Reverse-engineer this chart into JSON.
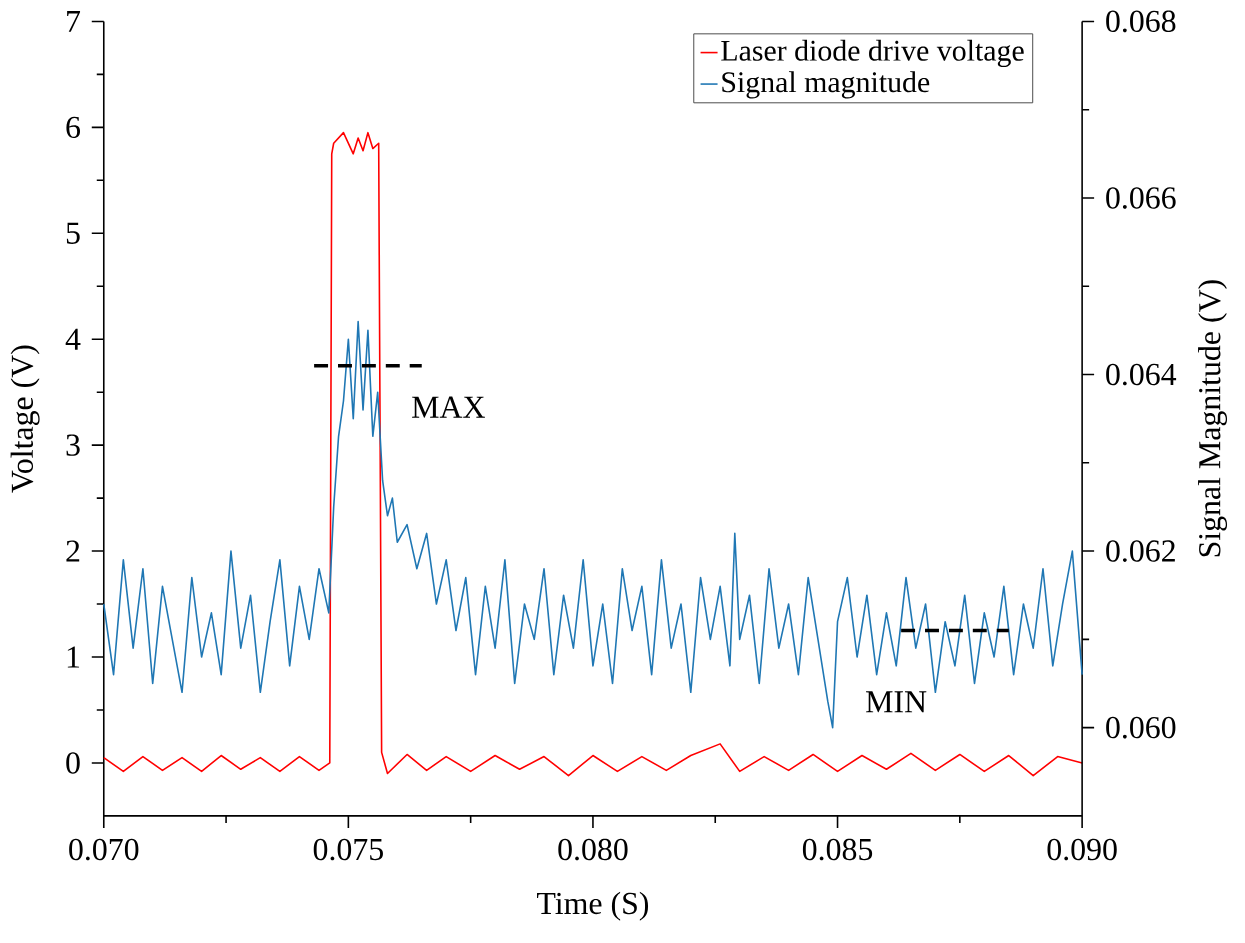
{
  "chart_data": {
    "type": "line",
    "xlabel": "Time (S)",
    "ylabel": "Voltage (V)",
    "y2label": "Signal Magnitude (V)",
    "xlim": [
      0.07,
      0.09
    ],
    "xticks": [
      {
        "value": 0.07,
        "label": "0.070"
      },
      {
        "value": 0.075,
        "label": "0.075"
      },
      {
        "value": 0.08,
        "label": "0.080"
      },
      {
        "value": 0.085,
        "label": "0.085"
      },
      {
        "value": 0.09,
        "label": "0.090"
      }
    ],
    "ylim": [
      -0.5,
      7
    ],
    "yticks": [
      0,
      1,
      2,
      3,
      4,
      5,
      6,
      7
    ],
    "y2lim": [
      0.059,
      0.068
    ],
    "y2ticks": [
      {
        "value": 0.06,
        "label": "0.060"
      },
      {
        "value": 0.062,
        "label": "0.062"
      },
      {
        "value": 0.064,
        "label": "0.064"
      },
      {
        "value": 0.066,
        "label": "0.066"
      },
      {
        "value": 0.068,
        "label": "0.068"
      }
    ],
    "legend": "top right",
    "series": [
      {
        "name": "Laser diode drive voltage",
        "color": "#ff0000",
        "axis": "y",
        "x": [
          0.07,
          0.0704,
          0.0708,
          0.0712,
          0.0716,
          0.072,
          0.0724,
          0.0728,
          0.0732,
          0.0736,
          0.074,
          0.0744,
          0.07462,
          0.07466,
          0.0747,
          0.0749,
          0.0751,
          0.0752,
          0.0753,
          0.0754,
          0.0755,
          0.07562,
          0.07568,
          0.0758,
          0.0762,
          0.0766,
          0.077,
          0.0775,
          0.078,
          0.0785,
          0.079,
          0.0795,
          0.08,
          0.0805,
          0.081,
          0.0815,
          0.082,
          0.0826,
          0.083,
          0.0835,
          0.084,
          0.0845,
          0.085,
          0.0855,
          0.086,
          0.0865,
          0.087,
          0.0875,
          0.088,
          0.0885,
          0.089,
          0.0895,
          0.09
        ],
        "values": [
          0.05,
          -0.08,
          0.06,
          -0.07,
          0.05,
          -0.08,
          0.07,
          -0.06,
          0.05,
          -0.08,
          0.06,
          -0.07,
          0.0,
          5.75,
          5.85,
          5.95,
          5.75,
          5.9,
          5.78,
          5.95,
          5.8,
          5.85,
          0.1,
          -0.1,
          0.08,
          -0.07,
          0.06,
          -0.08,
          0.07,
          -0.06,
          0.06,
          -0.12,
          0.07,
          -0.08,
          0.06,
          -0.07,
          0.07,
          0.18,
          -0.08,
          0.06,
          -0.07,
          0.08,
          -0.08,
          0.07,
          -0.06,
          0.09,
          -0.07,
          0.08,
          -0.08,
          0.07,
          -0.12,
          0.06,
          0.0
        ]
      },
      {
        "name": "Signal magnitude",
        "color": "#1f77b4",
        "axis": "y2",
        "x": [
          0.07,
          0.0702,
          0.0704,
          0.0706,
          0.0708,
          0.071,
          0.0712,
          0.0714,
          0.0716,
          0.0718,
          0.072,
          0.0722,
          0.0724,
          0.0726,
          0.0728,
          0.073,
          0.0732,
          0.0734,
          0.0736,
          0.0738,
          0.074,
          0.0742,
          0.0744,
          0.0746,
          0.0747,
          0.0748,
          0.0749,
          0.075,
          0.0751,
          0.0752,
          0.0753,
          0.0754,
          0.0755,
          0.0756,
          0.0757,
          0.0758,
          0.0759,
          0.076,
          0.0762,
          0.0764,
          0.0766,
          0.0768,
          0.077,
          0.0772,
          0.0774,
          0.0776,
          0.0778,
          0.078,
          0.0782,
          0.0784,
          0.0786,
          0.0788,
          0.079,
          0.0792,
          0.0794,
          0.0796,
          0.0798,
          0.08,
          0.0802,
          0.0804,
          0.0806,
          0.0808,
          0.081,
          0.0812,
          0.0814,
          0.0816,
          0.0818,
          0.082,
          0.0822,
          0.0824,
          0.0826,
          0.0828,
          0.0829,
          0.083,
          0.0832,
          0.0834,
          0.0836,
          0.0838,
          0.084,
          0.0842,
          0.0844,
          0.0846,
          0.0848,
          0.0849,
          0.085,
          0.0852,
          0.0854,
          0.0856,
          0.0858,
          0.086,
          0.0862,
          0.0864,
          0.0866,
          0.0868,
          0.087,
          0.0872,
          0.0874,
          0.0876,
          0.0878,
          0.088,
          0.0882,
          0.0884,
          0.0886,
          0.0888,
          0.089,
          0.0892,
          0.0894,
          0.0896,
          0.0898,
          0.09
        ],
        "values": [
          0.0614,
          0.0606,
          0.0619,
          0.0609,
          0.0618,
          0.0605,
          0.0616,
          0.061,
          0.0604,
          0.0617,
          0.0608,
          0.0613,
          0.0606,
          0.062,
          0.0609,
          0.0615,
          0.0604,
          0.0612,
          0.0619,
          0.0607,
          0.0616,
          0.061,
          0.0618,
          0.0613,
          0.0625,
          0.0633,
          0.0637,
          0.0644,
          0.0635,
          0.0646,
          0.0636,
          0.0645,
          0.0633,
          0.0638,
          0.0628,
          0.0624,
          0.0626,
          0.0621,
          0.0623,
          0.0618,
          0.0622,
          0.0614,
          0.0619,
          0.0611,
          0.0617,
          0.0606,
          0.0616,
          0.0609,
          0.0619,
          0.0605,
          0.0614,
          0.061,
          0.0618,
          0.0606,
          0.0615,
          0.0609,
          0.0619,
          0.0607,
          0.0614,
          0.0605,
          0.0618,
          0.0611,
          0.0616,
          0.0606,
          0.0619,
          0.0609,
          0.0614,
          0.0604,
          0.0617,
          0.061,
          0.0616,
          0.0607,
          0.0622,
          0.061,
          0.0615,
          0.0605,
          0.0618,
          0.0609,
          0.0614,
          0.0606,
          0.0617,
          0.061,
          0.0603,
          0.06,
          0.0612,
          0.0617,
          0.0608,
          0.0615,
          0.0606,
          0.0613,
          0.0607,
          0.0617,
          0.0609,
          0.0614,
          0.0604,
          0.0612,
          0.0607,
          0.0615,
          0.0605,
          0.0613,
          0.0608,
          0.0616,
          0.0606,
          0.0614,
          0.0609,
          0.0618,
          0.0607,
          0.0614,
          0.062,
          0.0606
        ]
      },
      {
        "color": "#000000",
        "axis": "y2",
        "line_style": "dashed",
        "x": [
          0.0743,
          0.0765
        ],
        "values": [
          0.0641,
          0.0641
        ]
      },
      {
        "color": "#000000",
        "axis": "y2",
        "line_style": "dashed",
        "x": [
          0.0863,
          0.0885
        ],
        "values": [
          0.0611,
          0.0611
        ]
      }
    ],
    "annotations": [
      "MAX",
      "MIN"
    ]
  }
}
